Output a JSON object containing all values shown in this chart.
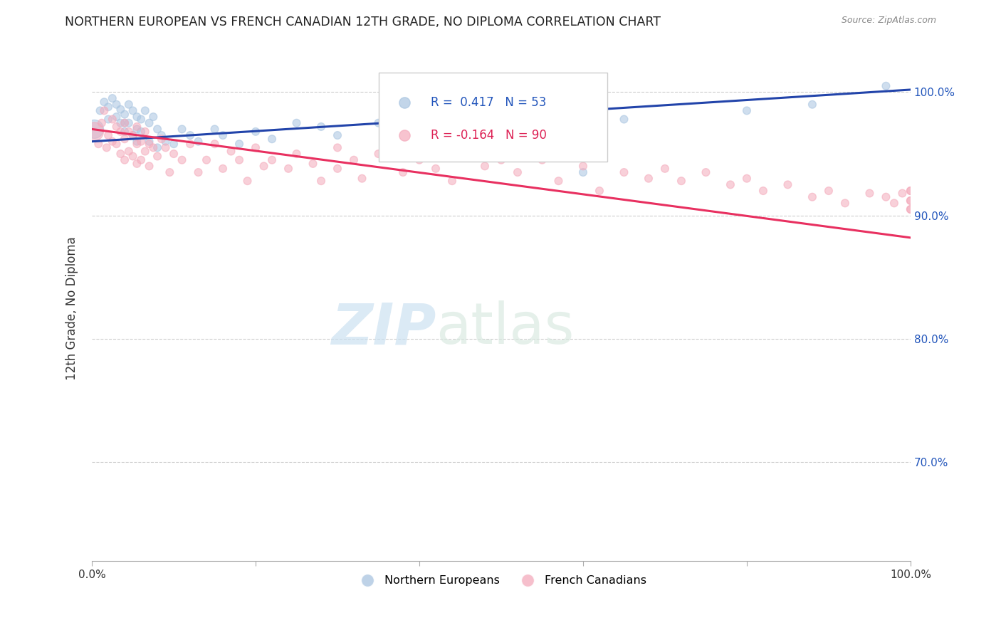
{
  "title": "NORTHERN EUROPEAN VS FRENCH CANADIAN 12TH GRADE, NO DIPLOMA CORRELATION CHART",
  "source": "Source: ZipAtlas.com",
  "ylabel": "12th Grade, No Diploma",
  "xmin": 0.0,
  "xmax": 1.0,
  "ymin": 0.62,
  "ymax": 1.03,
  "ytick_labels": [
    "70.0%",
    "80.0%",
    "90.0%",
    "100.0%"
  ],
  "ytick_values": [
    0.7,
    0.8,
    0.9,
    1.0
  ],
  "legend_label1": "Northern Europeans",
  "legend_label2": "French Canadians",
  "r1": 0.417,
  "n1": 53,
  "r2": -0.164,
  "n2": 90,
  "blue_color": "#A8C4E0",
  "pink_color": "#F4AABB",
  "line_blue": "#2244AA",
  "line_pink": "#E83060",
  "watermark_zip": "ZIP",
  "watermark_atlas": "atlas",
  "blue_line_start_y": 0.96,
  "blue_line_end_y": 1.002,
  "pink_line_start_y": 0.97,
  "pink_line_end_y": 0.882,
  "blue_points_x": [
    0.003,
    0.01,
    0.015,
    0.02,
    0.02,
    0.025,
    0.03,
    0.03,
    0.035,
    0.035,
    0.04,
    0.04,
    0.04,
    0.045,
    0.045,
    0.05,
    0.05,
    0.055,
    0.055,
    0.055,
    0.06,
    0.06,
    0.065,
    0.07,
    0.07,
    0.075,
    0.08,
    0.08,
    0.085,
    0.09,
    0.1,
    0.11,
    0.12,
    0.13,
    0.15,
    0.16,
    0.18,
    0.2,
    0.22,
    0.25,
    0.28,
    0.3,
    0.35,
    0.38,
    0.42,
    0.45,
    0.5,
    0.55,
    0.6,
    0.65,
    0.8,
    0.88,
    0.97
  ],
  "blue_points_y": [
    0.97,
    0.985,
    0.992,
    0.988,
    0.978,
    0.995,
    0.99,
    0.98,
    0.986,
    0.975,
    0.982,
    0.975,
    0.968,
    0.99,
    0.975,
    0.985,
    0.965,
    0.98,
    0.97,
    0.96,
    0.978,
    0.968,
    0.985,
    0.975,
    0.96,
    0.98,
    0.97,
    0.955,
    0.965,
    0.96,
    0.958,
    0.97,
    0.965,
    0.96,
    0.97,
    0.965,
    0.958,
    0.968,
    0.962,
    0.975,
    0.972,
    0.965,
    0.975,
    0.968,
    0.97,
    0.975,
    0.978,
    0.982,
    0.935,
    0.978,
    0.985,
    0.99,
    1.005
  ],
  "blue_sizes_large": [
    350
  ],
  "blue_sizes_small": 60,
  "pink_points_x": [
    0.003,
    0.008,
    0.012,
    0.015,
    0.018,
    0.02,
    0.025,
    0.025,
    0.03,
    0.03,
    0.035,
    0.035,
    0.04,
    0.04,
    0.04,
    0.045,
    0.045,
    0.05,
    0.05,
    0.055,
    0.055,
    0.055,
    0.06,
    0.06,
    0.065,
    0.065,
    0.07,
    0.07,
    0.075,
    0.08,
    0.085,
    0.09,
    0.095,
    0.1,
    0.11,
    0.12,
    0.13,
    0.14,
    0.15,
    0.16,
    0.17,
    0.18,
    0.19,
    0.2,
    0.21,
    0.22,
    0.24,
    0.25,
    0.27,
    0.28,
    0.3,
    0.3,
    0.32,
    0.33,
    0.35,
    0.38,
    0.4,
    0.42,
    0.44,
    0.46,
    0.48,
    0.5,
    0.52,
    0.55,
    0.57,
    0.58,
    0.6,
    0.62,
    0.65,
    0.68,
    0.7,
    0.72,
    0.75,
    0.78,
    0.8,
    0.82,
    0.85,
    0.88,
    0.9,
    0.92,
    0.95,
    0.97,
    0.98,
    0.99,
    1.0,
    1.0,
    1.0,
    1.0,
    1.0,
    1.0
  ],
  "pink_points_y": [
    0.968,
    0.958,
    0.975,
    0.985,
    0.955,
    0.965,
    0.978,
    0.96,
    0.972,
    0.958,
    0.968,
    0.95,
    0.975,
    0.962,
    0.945,
    0.968,
    0.952,
    0.965,
    0.948,
    0.972,
    0.958,
    0.942,
    0.96,
    0.945,
    0.968,
    0.952,
    0.958,
    0.94,
    0.955,
    0.948,
    0.962,
    0.955,
    0.935,
    0.95,
    0.945,
    0.958,
    0.935,
    0.945,
    0.958,
    0.938,
    0.952,
    0.945,
    0.928,
    0.955,
    0.94,
    0.945,
    0.938,
    0.95,
    0.942,
    0.928,
    0.955,
    0.938,
    0.945,
    0.93,
    0.95,
    0.935,
    0.945,
    0.938,
    0.928,
    0.95,
    0.94,
    0.945,
    0.935,
    0.945,
    0.928,
    0.96,
    0.94,
    0.92,
    0.935,
    0.93,
    0.938,
    0.928,
    0.935,
    0.925,
    0.93,
    0.92,
    0.925,
    0.915,
    0.92,
    0.91,
    0.918,
    0.915,
    0.91,
    0.918,
    0.92,
    0.912,
    0.905,
    0.92,
    0.912,
    0.905
  ],
  "pink_sizes_large": [
    350
  ],
  "pink_sizes_small": 60
}
